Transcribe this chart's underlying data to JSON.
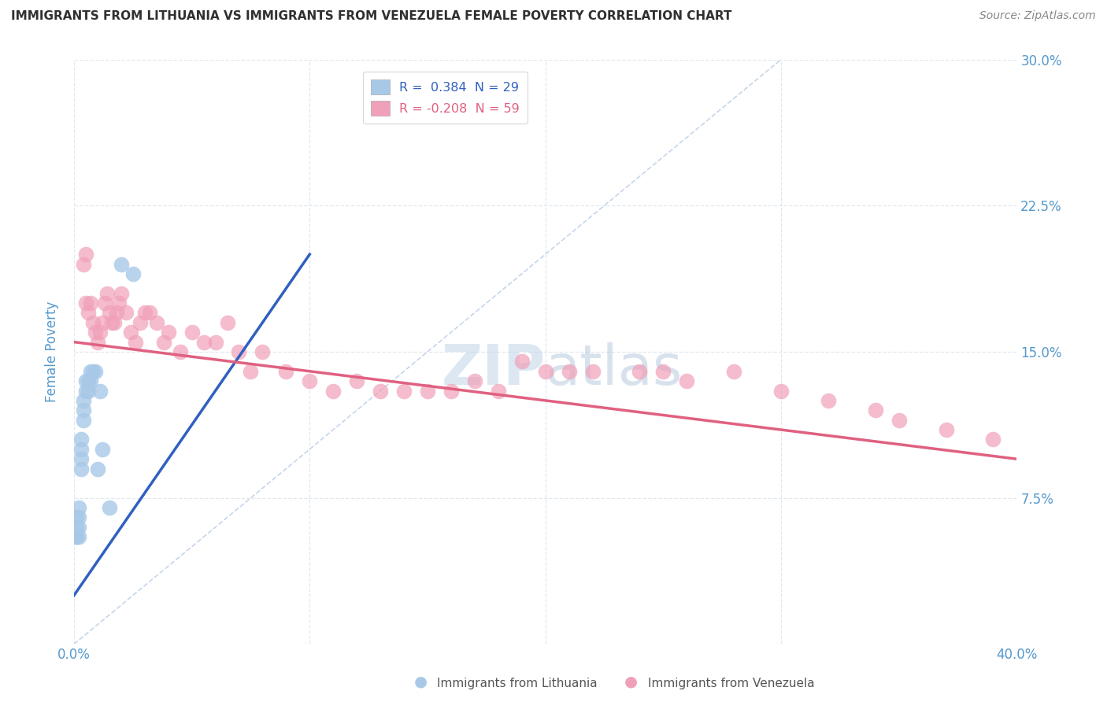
{
  "title": "IMMIGRANTS FROM LITHUANIA VS IMMIGRANTS FROM VENEZUELA FEMALE POVERTY CORRELATION CHART",
  "source": "Source: ZipAtlas.com",
  "ylabel": "Female Poverty",
  "xlim": [
    0.0,
    0.4
  ],
  "ylim": [
    0.0,
    0.3
  ],
  "xticks": [
    0.0,
    0.1,
    0.2,
    0.3,
    0.4
  ],
  "yticks": [
    0.0,
    0.075,
    0.15,
    0.225,
    0.3
  ],
  "ytick_labels_right": [
    "",
    "7.5%",
    "15.0%",
    "22.5%",
    "30.0%"
  ],
  "xtick_labels": [
    "0.0%",
    "",
    "",
    "",
    "40.0%"
  ],
  "legend_label1": "R =  0.384  N = 29",
  "legend_label2": "R = -0.208  N = 59",
  "watermark_zip": "ZIP",
  "watermark_atlas": "atlas",
  "background_color": "#ffffff",
  "grid_color": "#e0e8f0",
  "lithuania_color": "#a8c8e8",
  "venezuela_color": "#f0a0b8",
  "lithuania_line_color": "#3060c0",
  "venezuela_line_color": "#e06080",
  "diagonal_color": "#b8cce4",
  "title_color": "#303030",
  "axis_label_color": "#5599cc",
  "source_color": "#888888",
  "lithuania_line_x": [
    0.0,
    0.1
  ],
  "lithuania_line_y": [
    0.025,
    0.2
  ],
  "venezuela_line_x": [
    0.0,
    0.4
  ],
  "venezuela_line_y": [
    0.155,
    0.095
  ],
  "lithuania_data_x": [
    0.001,
    0.001,
    0.001,
    0.001,
    0.002,
    0.002,
    0.002,
    0.002,
    0.003,
    0.003,
    0.003,
    0.003,
    0.004,
    0.004,
    0.004,
    0.005,
    0.005,
    0.006,
    0.006,
    0.007,
    0.007,
    0.008,
    0.009,
    0.01,
    0.011,
    0.012,
    0.015,
    0.02,
    0.025
  ],
  "lithuania_data_y": [
    0.055,
    0.055,
    0.06,
    0.065,
    0.055,
    0.06,
    0.065,
    0.07,
    0.09,
    0.095,
    0.1,
    0.105,
    0.115,
    0.12,
    0.125,
    0.13,
    0.135,
    0.13,
    0.135,
    0.135,
    0.14,
    0.14,
    0.14,
    0.09,
    0.13,
    0.1,
    0.07,
    0.195,
    0.19
  ],
  "venezuela_data_x": [
    0.004,
    0.005,
    0.005,
    0.006,
    0.007,
    0.008,
    0.009,
    0.01,
    0.011,
    0.012,
    0.013,
    0.014,
    0.015,
    0.016,
    0.017,
    0.018,
    0.019,
    0.02,
    0.022,
    0.024,
    0.026,
    0.028,
    0.03,
    0.032,
    0.035,
    0.038,
    0.04,
    0.045,
    0.05,
    0.055,
    0.06,
    0.065,
    0.07,
    0.075,
    0.08,
    0.09,
    0.1,
    0.11,
    0.12,
    0.13,
    0.14,
    0.15,
    0.16,
    0.17,
    0.18,
    0.19,
    0.2,
    0.21,
    0.22,
    0.24,
    0.25,
    0.26,
    0.28,
    0.3,
    0.32,
    0.34,
    0.35,
    0.37,
    0.39
  ],
  "venezuela_data_y": [
    0.195,
    0.2,
    0.175,
    0.17,
    0.175,
    0.165,
    0.16,
    0.155,
    0.16,
    0.165,
    0.175,
    0.18,
    0.17,
    0.165,
    0.165,
    0.17,
    0.175,
    0.18,
    0.17,
    0.16,
    0.155,
    0.165,
    0.17,
    0.17,
    0.165,
    0.155,
    0.16,
    0.15,
    0.16,
    0.155,
    0.155,
    0.165,
    0.15,
    0.14,
    0.15,
    0.14,
    0.135,
    0.13,
    0.135,
    0.13,
    0.13,
    0.13,
    0.13,
    0.135,
    0.13,
    0.145,
    0.14,
    0.14,
    0.14,
    0.14,
    0.14,
    0.135,
    0.14,
    0.13,
    0.125,
    0.12,
    0.115,
    0.11,
    0.105
  ]
}
